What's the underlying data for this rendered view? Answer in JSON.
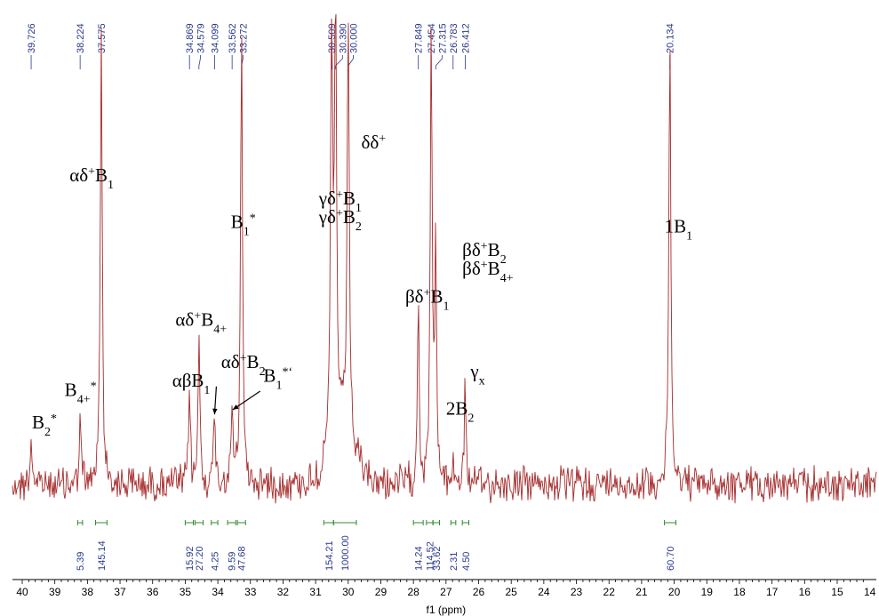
{
  "chart_data": {
    "type": "line",
    "x_axis": {
      "label": "f1 (ppm)",
      "range": [
        40.3,
        13.8
      ],
      "ticks": [
        40,
        39,
        38,
        37,
        36,
        35,
        34,
        33,
        32,
        31,
        30,
        29,
        28,
        27,
        26,
        25,
        24,
        23,
        22,
        21,
        20,
        19,
        18,
        17,
        16,
        15,
        14
      ],
      "reversed": true
    },
    "grid": false,
    "peak_labels": [
      "39.726",
      "38.224",
      "37.575",
      "34.869",
      "34.579",
      "34.099",
      "33.562",
      "33.272",
      "30.509",
      "30.390",
      "30.000",
      "27.849",
      "27.454",
      "27.315",
      "26.783",
      "26.412",
      "20.134"
    ],
    "peaks": [
      {
        "ppm": 39.726,
        "height": 0.11
      },
      {
        "ppm": 38.224,
        "height": 0.15
      },
      {
        "ppm": 37.575,
        "height": 0.98
      },
      {
        "ppm": 34.869,
        "height": 0.22
      },
      {
        "ppm": 34.579,
        "height": 0.35
      },
      {
        "ppm": 34.099,
        "height": 0.17
      },
      {
        "ppm": 33.562,
        "height": 0.17
      },
      {
        "ppm": 33.272,
        "height": 0.98
      },
      {
        "ppm": 30.509,
        "height": 0.98
      },
      {
        "ppm": 30.39,
        "height": 0.98
      },
      {
        "ppm": 30.0,
        "height": 0.98
      },
      {
        "ppm": 27.849,
        "height": 0.42
      },
      {
        "ppm": 27.454,
        "height": 0.98
      },
      {
        "ppm": 27.315,
        "height": 0.51
      },
      {
        "ppm": 26.783,
        "height": 0.05
      },
      {
        "ppm": 26.412,
        "height": 0.22
      },
      {
        "ppm": 20.134,
        "height": 0.98
      }
    ],
    "integrals": [
      {
        "value": "5.39",
        "from": 38.3,
        "to": 38.15
      },
      {
        "value": "145.14",
        "from": 37.75,
        "to": 37.4
      },
      {
        "value": "15.92",
        "from": 35.0,
        "to": 34.75
      },
      {
        "value": "27.20",
        "from": 34.7,
        "to": 34.45
      },
      {
        "value": "4.25",
        "from": 34.2,
        "to": 34.0
      },
      {
        "value": "9.59",
        "from": 33.7,
        "to": 33.45
      },
      {
        "value": "47.68",
        "from": 33.4,
        "to": 33.15
      },
      {
        "value": "154.21",
        "from": 30.75,
        "to": 30.45
      },
      {
        "value": "1000.00",
        "from": 30.45,
        "to": 29.75
      },
      {
        "value": "14.24",
        "from": 28.0,
        "to": 27.7
      },
      {
        "value": "114.52",
        "from": 27.6,
        "to": 27.4
      },
      {
        "value": "33.62",
        "from": 27.4,
        "to": 27.2
      },
      {
        "value": "2.31",
        "from": 26.85,
        "to": 26.7
      },
      {
        "value": "4.50",
        "from": 26.5,
        "to": 26.3
      },
      {
        "value": "60.70",
        "from": 20.3,
        "to": 19.95
      }
    ],
    "annotations": [
      {
        "parts": [
          [
            "αδ",
            "n"
          ],
          [
            "+",
            "sup"
          ],
          [
            "B",
            "n"
          ],
          [
            "1",
            "sub"
          ]
        ],
        "at_ppm": 38.55,
        "y": 0.65
      },
      {
        "parts": [
          [
            "B",
            "n"
          ],
          [
            "1",
            "sub"
          ],
          [
            "*",
            "sup"
          ]
        ],
        "at_ppm": 33.6,
        "y": 0.55
      },
      {
        "parts": [
          [
            "γδ",
            "n"
          ],
          [
            "+",
            "sup"
          ],
          [
            "B",
            "n"
          ],
          [
            "1",
            "sub"
          ]
        ],
        "at_ppm": 30.9,
        "y": 0.6
      },
      {
        "parts": [
          [
            "γδ",
            "n"
          ],
          [
            "+",
            "sup"
          ],
          [
            "B",
            "n"
          ],
          [
            "2",
            "sub"
          ]
        ],
        "at_ppm": 30.9,
        "y": 0.56
      },
      {
        "parts": [
          [
            "δδ",
            "n"
          ],
          [
            "+",
            "sup"
          ]
        ],
        "at_ppm": 29.6,
        "y": 0.72
      },
      {
        "parts": [
          [
            "1B",
            "n"
          ],
          [
            "1",
            "sub"
          ]
        ],
        "at_ppm": 20.3,
        "y": 0.54
      },
      {
        "parts": [
          [
            "βδ",
            "n"
          ],
          [
            "+",
            "sup"
          ],
          [
            "B",
            "n"
          ],
          [
            "2",
            "sub"
          ]
        ],
        "at_ppm": 26.5,
        "y": 0.49
      },
      {
        "parts": [
          [
            "βδ",
            "n"
          ],
          [
            "+",
            "sup"
          ],
          [
            "B",
            "n"
          ],
          [
            "4+",
            "sub"
          ]
        ],
        "at_ppm": 26.5,
        "y": 0.45
      },
      {
        "parts": [
          [
            "βδ",
            "n"
          ],
          [
            "+",
            "sup"
          ],
          [
            "B",
            "n"
          ],
          [
            "1",
            "sub"
          ]
        ],
        "at_ppm": 28.25,
        "y": 0.39
      },
      {
        "parts": [
          [
            "αδ",
            "n"
          ],
          [
            "+",
            "sup"
          ],
          [
            "B",
            "n"
          ],
          [
            "4+",
            "sub"
          ]
        ],
        "at_ppm": 35.3,
        "y": 0.34
      },
      {
        "parts": [
          [
            "αβB",
            "n"
          ],
          [
            "1",
            "sub"
          ]
        ],
        "at_ppm": 35.4,
        "y": 0.21
      },
      {
        "parts": [
          [
            "αδ",
            "n"
          ],
          [
            "+",
            "sup"
          ],
          [
            "B",
            "n"
          ],
          [
            "2",
            "sub"
          ]
        ],
        "at_ppm": 33.9,
        "y": 0.25
      },
      {
        "parts": [
          [
            "B",
            "n"
          ],
          [
            "1",
            "sub"
          ],
          [
            "*‘",
            "sup"
          ]
        ],
        "at_ppm": 32.6,
        "y": 0.22
      },
      {
        "parts": [
          [
            "B",
            "n"
          ],
          [
            "4+",
            "sub"
          ],
          [
            "*",
            "sup"
          ]
        ],
        "at_ppm": 38.7,
        "y": 0.19
      },
      {
        "parts": [
          [
            "B",
            "n"
          ],
          [
            "2",
            "sub"
          ],
          [
            "*",
            "sup"
          ]
        ],
        "at_ppm": 39.7,
        "y": 0.12
      },
      {
        "parts": [
          [
            "γ",
            "n"
          ],
          [
            "x",
            "sub"
          ]
        ],
        "at_ppm": 26.25,
        "y": 0.23
      },
      {
        "parts": [
          [
            "2B",
            "n"
          ],
          [
            "2",
            "sub"
          ]
        ],
        "at_ppm": 27.0,
        "y": 0.15
      }
    ],
    "colors": {
      "spectrum": "#a52a2a",
      "peak_labels": "#2b3a8c",
      "integral_marks": "#2e8b2e"
    }
  }
}
